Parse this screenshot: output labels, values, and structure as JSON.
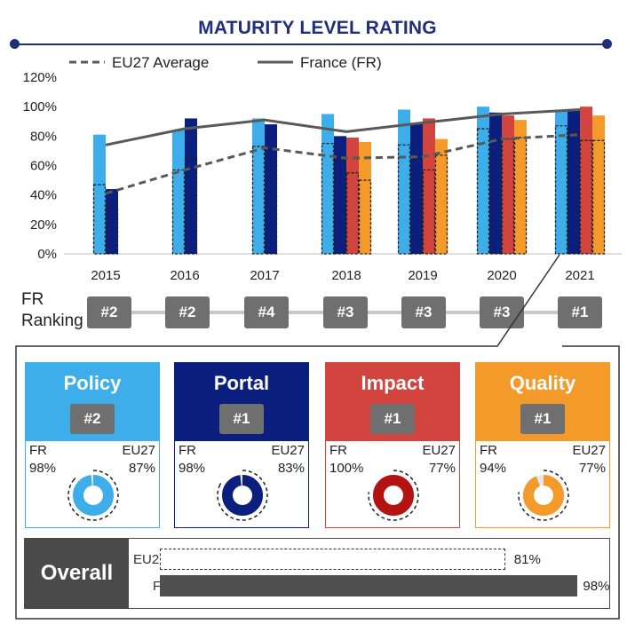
{
  "title": "MATURITY LEVEL RATING",
  "colors": {
    "title": "#1f2f7a",
    "policy": "#3daee9",
    "portal": "#0b1f7e",
    "impact": "#d2453f",
    "quality": "#f39a2b",
    "line": "#595959",
    "badge": "#6f6f6f",
    "overall": "#4a4a4a"
  },
  "chart_data": {
    "type": "bar",
    "categories": [
      "2015",
      "2016",
      "2017",
      "2018",
      "2019",
      "2020",
      "2021"
    ],
    "ylim": [
      0,
      120
    ],
    "yticks": [
      "0%",
      "20%",
      "40%",
      "60%",
      "80%",
      "100%",
      "120%"
    ],
    "series": [
      {
        "name": "Policy",
        "values": [
          81,
          84,
          92,
          95,
          98,
          100,
          98
        ]
      },
      {
        "name": "Portal",
        "values": [
          44,
          92,
          88,
          80,
          89,
          96,
          98
        ]
      },
      {
        "name": "Impact",
        "values": [
          null,
          null,
          null,
          79,
          92,
          94,
          100
        ]
      },
      {
        "name": "Quality",
        "values": [
          null,
          null,
          null,
          76,
          78,
          91,
          94
        ]
      }
    ],
    "eu_series": [
      {
        "name": "Policy",
        "values": [
          47,
          57,
          73,
          75,
          74,
          85,
          87
        ]
      },
      {
        "name": "Portal",
        "values": [
          32,
          66,
          71,
          64,
          64,
          77,
          83
        ]
      },
      {
        "name": "Impact",
        "values": [
          null,
          null,
          null,
          55,
          57,
          78,
          77
        ]
      },
      {
        "name": "Quality",
        "values": [
          null,
          null,
          null,
          50,
          67,
          79,
          77
        ]
      }
    ],
    "lines": [
      {
        "name": "EU27 Average",
        "style": "dashed",
        "values": [
          41,
          57,
          72,
          65,
          66,
          78,
          81
        ]
      },
      {
        "name": "France (FR)",
        "style": "solid",
        "values": [
          74,
          85,
          91,
          83,
          89,
          95,
          98
        ]
      }
    ],
    "legend": [
      "EU27 Average",
      "France (FR)"
    ]
  },
  "ranking": {
    "label_line1": "FR",
    "label_line2": "Ranking",
    "ranks": [
      "#2",
      "#2",
      "#4",
      "#3",
      "#3",
      "#3",
      "#1"
    ]
  },
  "cards": [
    {
      "title": "Policy",
      "rank": "#2",
      "fr_label": "FR",
      "eu_label": "EU27",
      "fr_value": "98%",
      "eu_value": "87%",
      "fr_pct": 98,
      "eu_pct": 87,
      "color": "#3daee9",
      "head_color": "#3daee9",
      "border_color": "#3daee9"
    },
    {
      "title": "Portal",
      "rank": "#1",
      "fr_label": "FR",
      "eu_label": "EU27",
      "fr_value": "98%",
      "eu_value": "83%",
      "fr_pct": 98,
      "eu_pct": 83,
      "color": "#0b1f7e",
      "head_color": "#0b1f7e",
      "border_color": "#0b1f7e"
    },
    {
      "title": "Impact",
      "rank": "#1",
      "fr_label": "FR",
      "eu_label": "EU27",
      "fr_value": "100%",
      "eu_value": "77%",
      "fr_pct": 100,
      "eu_pct": 77,
      "color": "#b51212",
      "head_color": "#d2453f",
      "border_color": "#d2453f"
    },
    {
      "title": "Quality",
      "rank": "#1",
      "fr_label": "FR",
      "eu_label": "EU27",
      "fr_value": "94%",
      "eu_value": "77%",
      "fr_pct": 94,
      "eu_pct": 77,
      "color": "#f39a2b",
      "head_color": "#f39a2b",
      "border_color": "#f39a2b"
    }
  ],
  "overall": {
    "label": "Overall",
    "eu_label": "EU27",
    "fr_label": "FR",
    "eu_value": "81%",
    "fr_value": "98%",
    "eu_pct": 81,
    "fr_pct": 98
  }
}
